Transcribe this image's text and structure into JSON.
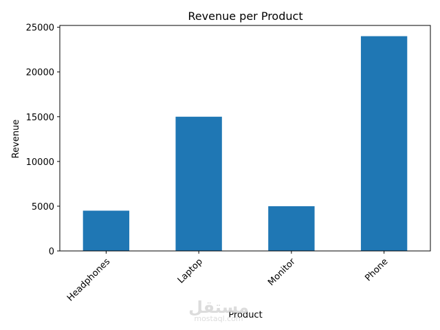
{
  "chart_data": {
    "type": "bar",
    "title": "Revenue per Product",
    "xlabel": "Product",
    "ylabel": "Revenue",
    "categories": [
      "Headphones",
      "Laptop",
      "Monitor",
      "Phone"
    ],
    "values": [
      4500,
      15000,
      5000,
      24000
    ],
    "ylim": [
      0,
      25200
    ],
    "yticks": [
      0,
      5000,
      10000,
      15000,
      20000,
      25000
    ],
    "grid": false,
    "bar_color": "#1f77b4",
    "x_tick_rotation": 45
  },
  "watermark": {
    "logo_text": "مستقل",
    "url": "mostaql.com"
  }
}
